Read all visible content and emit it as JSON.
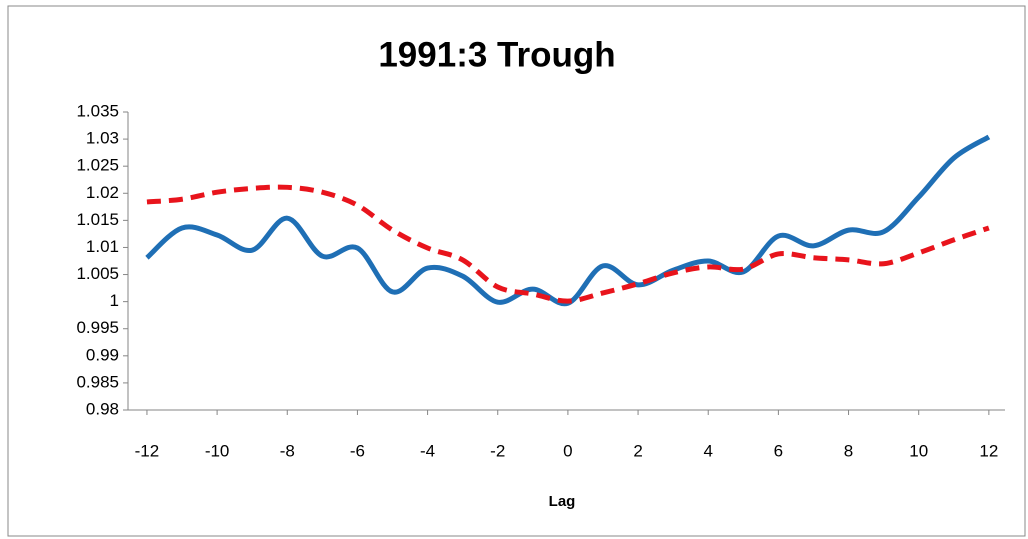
{
  "chart_data": {
    "type": "line",
    "title": "1991:3 Trough",
    "x_label": "Lag",
    "x": [
      -12,
      -11,
      -10,
      -9,
      -8,
      -7,
      -6,
      -5,
      -4,
      -3,
      -2,
      -1,
      0,
      1,
      2,
      3,
      4,
      5,
      6,
      7,
      8,
      9,
      10,
      11,
      12
    ],
    "series": [
      {
        "color": "#1f6fb5",
        "dashed": false,
        "values": [
          1.0081,
          1.0136,
          1.0123,
          1.0095,
          1.0154,
          1.0084,
          1.0099,
          1.0018,
          1.0062,
          1.0047,
          0.9999,
          1.0023,
          0.9997,
          1.0066,
          1.0031,
          1.0058,
          1.0075,
          1.0055,
          1.0121,
          1.0103,
          1.0132,
          1.0129,
          1.0193,
          1.0265,
          1.0304
        ]
      },
      {
        "color": "#e8141c",
        "dashed": true,
        "values": [
          1.0184,
          1.0189,
          1.0202,
          1.0209,
          1.0211,
          1.0202,
          1.0178,
          1.0132,
          1.0099,
          1.0077,
          1.0027,
          1.0014,
          1.0001,
          1.0016,
          1.0033,
          1.0053,
          1.0064,
          1.006,
          1.0088,
          1.0081,
          1.0077,
          1.007,
          1.009,
          1.0114,
          1.0136
        ]
      }
    ],
    "xlim": [
      -12.54,
      12.46
    ],
    "xticks": [
      -12,
      -10,
      -8,
      -6,
      -4,
      -2,
      0,
      2,
      4,
      6,
      8,
      10,
      12
    ],
    "ylim": [
      0.98,
      1.035
    ],
    "yticks": [
      0.98,
      0.985,
      0.99,
      0.995,
      1,
      1.005,
      1.01,
      1.015,
      1.02,
      1.025,
      1.03,
      1.035
    ],
    "grid": false,
    "smooth": true
  }
}
